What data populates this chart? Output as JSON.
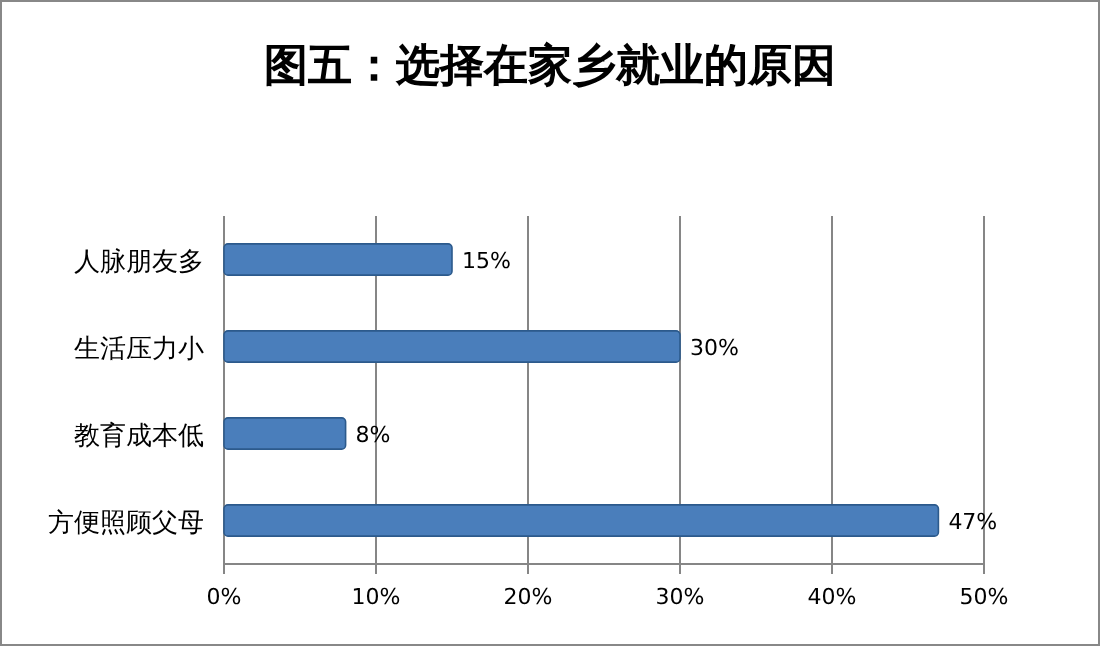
{
  "chart_data": {
    "type": "bar",
    "orientation": "horizontal",
    "title": "图五：选择在家乡就业的原因",
    "categories": [
      "人脉朋友多",
      "生活压力小",
      "教育成本低",
      "方便照顾父母"
    ],
    "values": [
      15,
      30,
      8,
      47
    ],
    "value_labels": [
      "15%",
      "30%",
      "8%",
      "47%"
    ],
    "color": "#4a7ebb",
    "xlim": [
      0,
      50
    ],
    "xticks": [
      {
        "value": 0,
        "label": "0%"
      },
      {
        "value": 10,
        "label": "10%"
      },
      {
        "value": 20,
        "label": "20%"
      },
      {
        "value": 30,
        "label": "30%"
      },
      {
        "value": 40,
        "label": "40%"
      },
      {
        "value": 50,
        "label": "50%"
      }
    ],
    "grid": "x"
  }
}
